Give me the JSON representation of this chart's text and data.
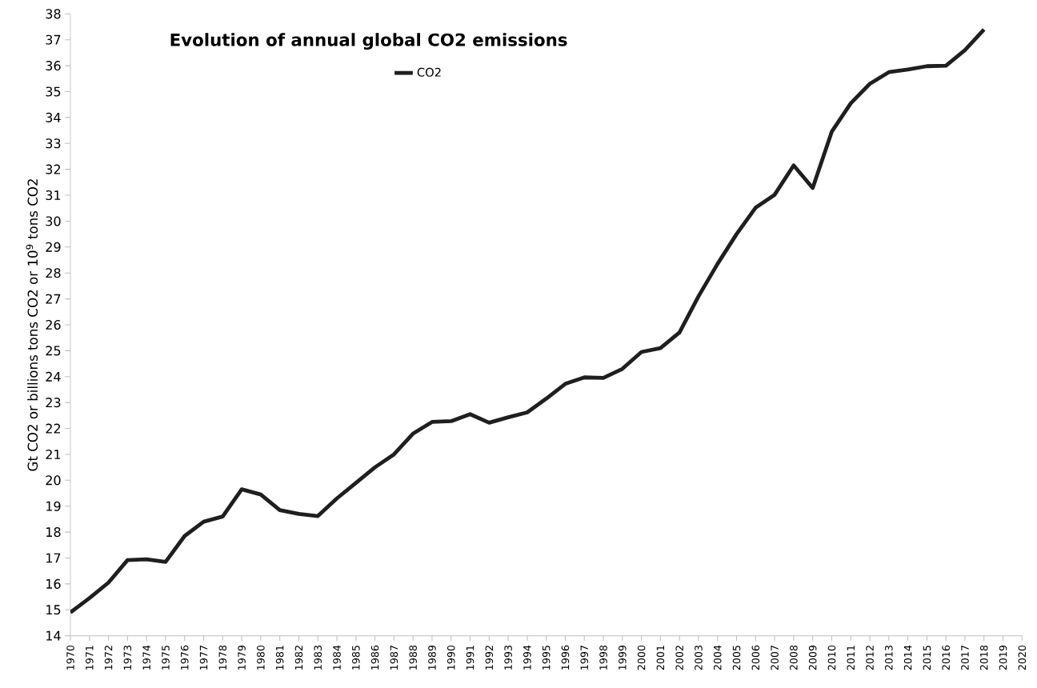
{
  "chart_data": {
    "type": "line",
    "title": "Evolution of annual global CO2 emissions",
    "ylabel": "Gt CO2  or  billions tons CO2  or  10$^{9}$ tons CO2",
    "x": [
      1970,
      1971,
      1972,
      1973,
      1974,
      1975,
      1976,
      1977,
      1978,
      1979,
      1980,
      1981,
      1982,
      1983,
      1984,
      1985,
      1986,
      1987,
      1988,
      1989,
      1990,
      1991,
      1992,
      1993,
      1994,
      1995,
      1996,
      1997,
      1998,
      1999,
      2000,
      2001,
      2002,
      2003,
      2004,
      2005,
      2006,
      2007,
      2008,
      2009,
      2010,
      2011,
      2012,
      2013,
      2014,
      2015,
      2016,
      2017,
      2018
    ],
    "series": [
      {
        "name": "CO2",
        "color": "#1f1f1f",
        "values": [
          14.9,
          15.45,
          16.05,
          16.92,
          16.95,
          16.85,
          17.85,
          18.4,
          18.6,
          19.65,
          19.45,
          18.85,
          18.7,
          18.62,
          19.3,
          19.9,
          20.5,
          21.0,
          21.8,
          22.25,
          22.28,
          22.55,
          22.22,
          22.43,
          22.62,
          23.15,
          23.72,
          23.97,
          23.95,
          24.3,
          24.95,
          25.1,
          25.7,
          27.1,
          28.35,
          29.5,
          30.52,
          31.02,
          32.15,
          31.28,
          33.45,
          34.55,
          35.3,
          35.75,
          35.85,
          35.98,
          36.0,
          36.6,
          37.4
        ]
      }
    ],
    "xlim": [
      1970,
      2020
    ],
    "xticks": [
      1970,
      1971,
      1972,
      1973,
      1974,
      1975,
      1976,
      1977,
      1978,
      1979,
      1980,
      1981,
      1982,
      1983,
      1984,
      1985,
      1986,
      1987,
      1988,
      1989,
      1990,
      1991,
      1992,
      1993,
      1994,
      1995,
      1996,
      1997,
      1998,
      1999,
      2000,
      2001,
      2002,
      2003,
      2004,
      2005,
      2006,
      2007,
      2008,
      2009,
      2010,
      2011,
      2012,
      2013,
      2014,
      2015,
      2016,
      2017,
      2018,
      2019,
      2020
    ],
    "ylim": [
      14,
      38
    ],
    "yticks": [
      14,
      15,
      16,
      17,
      18,
      19,
      20,
      21,
      22,
      23,
      24,
      25,
      26,
      27,
      28,
      29,
      30,
      31,
      32,
      33,
      34,
      35,
      36,
      37,
      38
    ],
    "grid": false,
    "legend": "top left",
    "marker": "none",
    "line_style": "solid"
  }
}
